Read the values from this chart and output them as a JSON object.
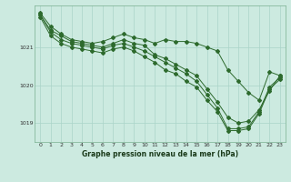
{
  "title": "Graphe pression niveau de la mer (hPa)",
  "background_color": "#cceae0",
  "line_color": "#2d6a2d",
  "grid_color": "#aad4c8",
  "ylim": [
    1018.5,
    1022.1
  ],
  "yticks": [
    1019,
    1020,
    1021
  ],
  "xlim": [
    -0.5,
    23.5
  ],
  "xticks": [
    0,
    1,
    2,
    3,
    4,
    5,
    6,
    7,
    8,
    9,
    10,
    11,
    12,
    13,
    14,
    15,
    16,
    17,
    18,
    19,
    20,
    21,
    22,
    23
  ],
  "series": [
    [
      1021.9,
      1021.55,
      1021.35,
      1021.2,
      1021.15,
      1021.1,
      1021.15,
      1021.25,
      1021.35,
      1021.25,
      1021.2,
      1021.1,
      1021.2,
      1021.15,
      1021.15,
      1021.1,
      1021.0,
      1020.9,
      1020.4,
      1020.1,
      1019.8,
      1019.6,
      1020.35,
      1020.25
    ],
    [
      1021.85,
      1021.45,
      1021.3,
      1021.15,
      1021.1,
      1021.05,
      1021.0,
      1021.1,
      1021.2,
      1021.1,
      1021.05,
      1020.8,
      1020.7,
      1020.55,
      1020.4,
      1020.25,
      1019.9,
      1019.55,
      1019.15,
      1019.0,
      1019.05,
      1019.35,
      1019.85,
      1020.25
    ],
    [
      1021.85,
      1021.4,
      1021.2,
      1021.1,
      1021.05,
      1021.0,
      1020.95,
      1021.05,
      1021.1,
      1021.0,
      1020.9,
      1020.75,
      1020.6,
      1020.45,
      1020.3,
      1020.1,
      1019.75,
      1019.4,
      1018.85,
      1018.85,
      1018.9,
      1019.3,
      1019.95,
      1020.2
    ],
    [
      1021.8,
      1021.3,
      1021.1,
      1021.0,
      1020.95,
      1020.9,
      1020.85,
      1020.95,
      1021.0,
      1020.9,
      1020.75,
      1020.6,
      1020.4,
      1020.3,
      1020.1,
      1019.95,
      1019.6,
      1019.3,
      1018.8,
      1018.8,
      1018.85,
      1019.25,
      1019.9,
      1020.15
    ]
  ]
}
